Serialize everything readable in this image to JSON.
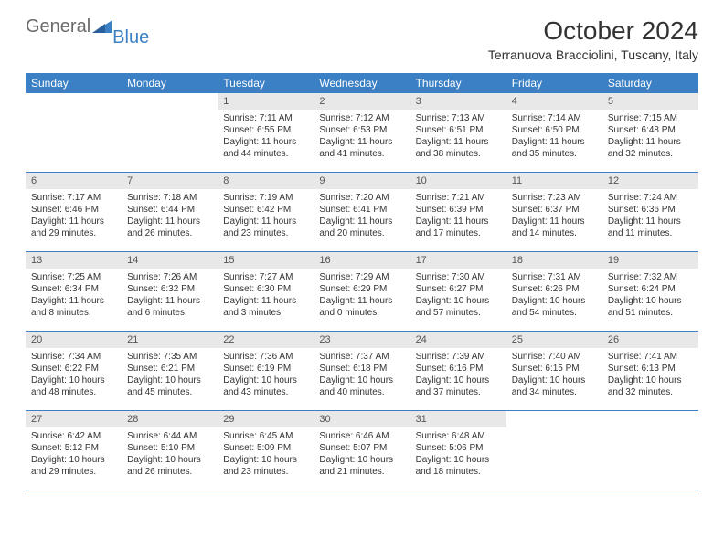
{
  "logo": {
    "general": "General",
    "blue": "Blue"
  },
  "title": "October 2024",
  "location": "Terranuova Bracciolini, Tuscany, Italy",
  "colors": {
    "header_bg": "#3b7fc4",
    "header_text": "#ffffff",
    "daynum_bg": "#e8e8e8",
    "body_text": "#333333",
    "logo_gray": "#6a6a6a",
    "logo_blue": "#3b7fc4",
    "border": "#3b7fc4",
    "page_bg": "#ffffff"
  },
  "day_names": [
    "Sunday",
    "Monday",
    "Tuesday",
    "Wednesday",
    "Thursday",
    "Friday",
    "Saturday"
  ],
  "weeks": [
    [
      null,
      null,
      {
        "n": "1",
        "sunrise": "Sunrise: 7:11 AM",
        "sunset": "Sunset: 6:55 PM",
        "dl1": "Daylight: 11 hours",
        "dl2": "and 44 minutes."
      },
      {
        "n": "2",
        "sunrise": "Sunrise: 7:12 AM",
        "sunset": "Sunset: 6:53 PM",
        "dl1": "Daylight: 11 hours",
        "dl2": "and 41 minutes."
      },
      {
        "n": "3",
        "sunrise": "Sunrise: 7:13 AM",
        "sunset": "Sunset: 6:51 PM",
        "dl1": "Daylight: 11 hours",
        "dl2": "and 38 minutes."
      },
      {
        "n": "4",
        "sunrise": "Sunrise: 7:14 AM",
        "sunset": "Sunset: 6:50 PM",
        "dl1": "Daylight: 11 hours",
        "dl2": "and 35 minutes."
      },
      {
        "n": "5",
        "sunrise": "Sunrise: 7:15 AM",
        "sunset": "Sunset: 6:48 PM",
        "dl1": "Daylight: 11 hours",
        "dl2": "and 32 minutes."
      }
    ],
    [
      {
        "n": "6",
        "sunrise": "Sunrise: 7:17 AM",
        "sunset": "Sunset: 6:46 PM",
        "dl1": "Daylight: 11 hours",
        "dl2": "and 29 minutes."
      },
      {
        "n": "7",
        "sunrise": "Sunrise: 7:18 AM",
        "sunset": "Sunset: 6:44 PM",
        "dl1": "Daylight: 11 hours",
        "dl2": "and 26 minutes."
      },
      {
        "n": "8",
        "sunrise": "Sunrise: 7:19 AM",
        "sunset": "Sunset: 6:42 PM",
        "dl1": "Daylight: 11 hours",
        "dl2": "and 23 minutes."
      },
      {
        "n": "9",
        "sunrise": "Sunrise: 7:20 AM",
        "sunset": "Sunset: 6:41 PM",
        "dl1": "Daylight: 11 hours",
        "dl2": "and 20 minutes."
      },
      {
        "n": "10",
        "sunrise": "Sunrise: 7:21 AM",
        "sunset": "Sunset: 6:39 PM",
        "dl1": "Daylight: 11 hours",
        "dl2": "and 17 minutes."
      },
      {
        "n": "11",
        "sunrise": "Sunrise: 7:23 AM",
        "sunset": "Sunset: 6:37 PM",
        "dl1": "Daylight: 11 hours",
        "dl2": "and 14 minutes."
      },
      {
        "n": "12",
        "sunrise": "Sunrise: 7:24 AM",
        "sunset": "Sunset: 6:36 PM",
        "dl1": "Daylight: 11 hours",
        "dl2": "and 11 minutes."
      }
    ],
    [
      {
        "n": "13",
        "sunrise": "Sunrise: 7:25 AM",
        "sunset": "Sunset: 6:34 PM",
        "dl1": "Daylight: 11 hours",
        "dl2": "and 8 minutes."
      },
      {
        "n": "14",
        "sunrise": "Sunrise: 7:26 AM",
        "sunset": "Sunset: 6:32 PM",
        "dl1": "Daylight: 11 hours",
        "dl2": "and 6 minutes."
      },
      {
        "n": "15",
        "sunrise": "Sunrise: 7:27 AM",
        "sunset": "Sunset: 6:30 PM",
        "dl1": "Daylight: 11 hours",
        "dl2": "and 3 minutes."
      },
      {
        "n": "16",
        "sunrise": "Sunrise: 7:29 AM",
        "sunset": "Sunset: 6:29 PM",
        "dl1": "Daylight: 11 hours",
        "dl2": "and 0 minutes."
      },
      {
        "n": "17",
        "sunrise": "Sunrise: 7:30 AM",
        "sunset": "Sunset: 6:27 PM",
        "dl1": "Daylight: 10 hours",
        "dl2": "and 57 minutes."
      },
      {
        "n": "18",
        "sunrise": "Sunrise: 7:31 AM",
        "sunset": "Sunset: 6:26 PM",
        "dl1": "Daylight: 10 hours",
        "dl2": "and 54 minutes."
      },
      {
        "n": "19",
        "sunrise": "Sunrise: 7:32 AM",
        "sunset": "Sunset: 6:24 PM",
        "dl1": "Daylight: 10 hours",
        "dl2": "and 51 minutes."
      }
    ],
    [
      {
        "n": "20",
        "sunrise": "Sunrise: 7:34 AM",
        "sunset": "Sunset: 6:22 PM",
        "dl1": "Daylight: 10 hours",
        "dl2": "and 48 minutes."
      },
      {
        "n": "21",
        "sunrise": "Sunrise: 7:35 AM",
        "sunset": "Sunset: 6:21 PM",
        "dl1": "Daylight: 10 hours",
        "dl2": "and 45 minutes."
      },
      {
        "n": "22",
        "sunrise": "Sunrise: 7:36 AM",
        "sunset": "Sunset: 6:19 PM",
        "dl1": "Daylight: 10 hours",
        "dl2": "and 43 minutes."
      },
      {
        "n": "23",
        "sunrise": "Sunrise: 7:37 AM",
        "sunset": "Sunset: 6:18 PM",
        "dl1": "Daylight: 10 hours",
        "dl2": "and 40 minutes."
      },
      {
        "n": "24",
        "sunrise": "Sunrise: 7:39 AM",
        "sunset": "Sunset: 6:16 PM",
        "dl1": "Daylight: 10 hours",
        "dl2": "and 37 minutes."
      },
      {
        "n": "25",
        "sunrise": "Sunrise: 7:40 AM",
        "sunset": "Sunset: 6:15 PM",
        "dl1": "Daylight: 10 hours",
        "dl2": "and 34 minutes."
      },
      {
        "n": "26",
        "sunrise": "Sunrise: 7:41 AM",
        "sunset": "Sunset: 6:13 PM",
        "dl1": "Daylight: 10 hours",
        "dl2": "and 32 minutes."
      }
    ],
    [
      {
        "n": "27",
        "sunrise": "Sunrise: 6:42 AM",
        "sunset": "Sunset: 5:12 PM",
        "dl1": "Daylight: 10 hours",
        "dl2": "and 29 minutes."
      },
      {
        "n": "28",
        "sunrise": "Sunrise: 6:44 AM",
        "sunset": "Sunset: 5:10 PM",
        "dl1": "Daylight: 10 hours",
        "dl2": "and 26 minutes."
      },
      {
        "n": "29",
        "sunrise": "Sunrise: 6:45 AM",
        "sunset": "Sunset: 5:09 PM",
        "dl1": "Daylight: 10 hours",
        "dl2": "and 23 minutes."
      },
      {
        "n": "30",
        "sunrise": "Sunrise: 6:46 AM",
        "sunset": "Sunset: 5:07 PM",
        "dl1": "Daylight: 10 hours",
        "dl2": "and 21 minutes."
      },
      {
        "n": "31",
        "sunrise": "Sunrise: 6:48 AM",
        "sunset": "Sunset: 5:06 PM",
        "dl1": "Daylight: 10 hours",
        "dl2": "and 18 minutes."
      },
      null,
      null
    ]
  ]
}
